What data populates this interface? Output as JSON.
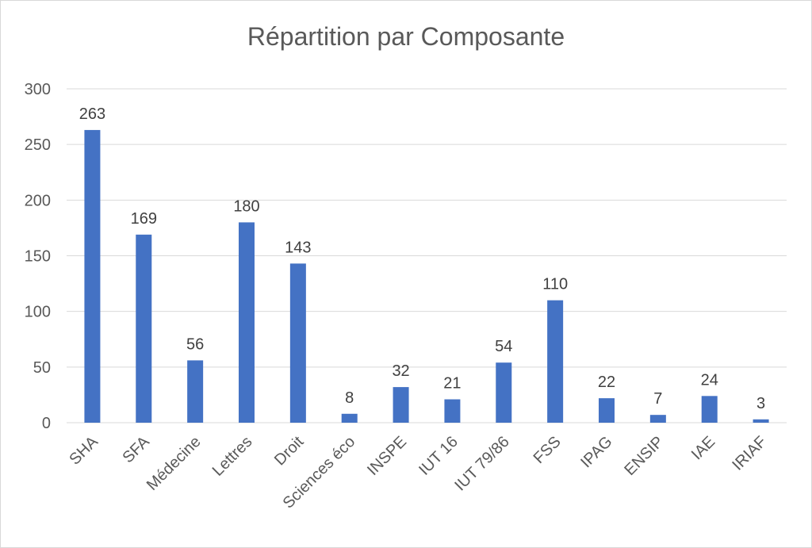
{
  "chart_data": {
    "type": "bar",
    "title": "Répartition par Composante",
    "xlabel": "",
    "ylabel": "",
    "categories": [
      "SHA",
      "SFA",
      "Médecine",
      "Lettres",
      "Droit",
      "Sciences éco",
      "INSPE",
      "IUT 16",
      "IUT 79/86",
      "FSS",
      "IPAG",
      "ENSIP",
      "IAE",
      "IRIAF"
    ],
    "values": [
      263,
      169,
      56,
      180,
      143,
      8,
      32,
      21,
      54,
      110,
      22,
      7,
      24,
      3
    ],
    "ylim": [
      0,
      300
    ],
    "yticks": [
      0,
      50,
      100,
      150,
      200,
      250,
      300
    ],
    "grid": true,
    "legend": "none",
    "bar_color": "#4472C4",
    "grid_color": "#d9d9d9"
  }
}
